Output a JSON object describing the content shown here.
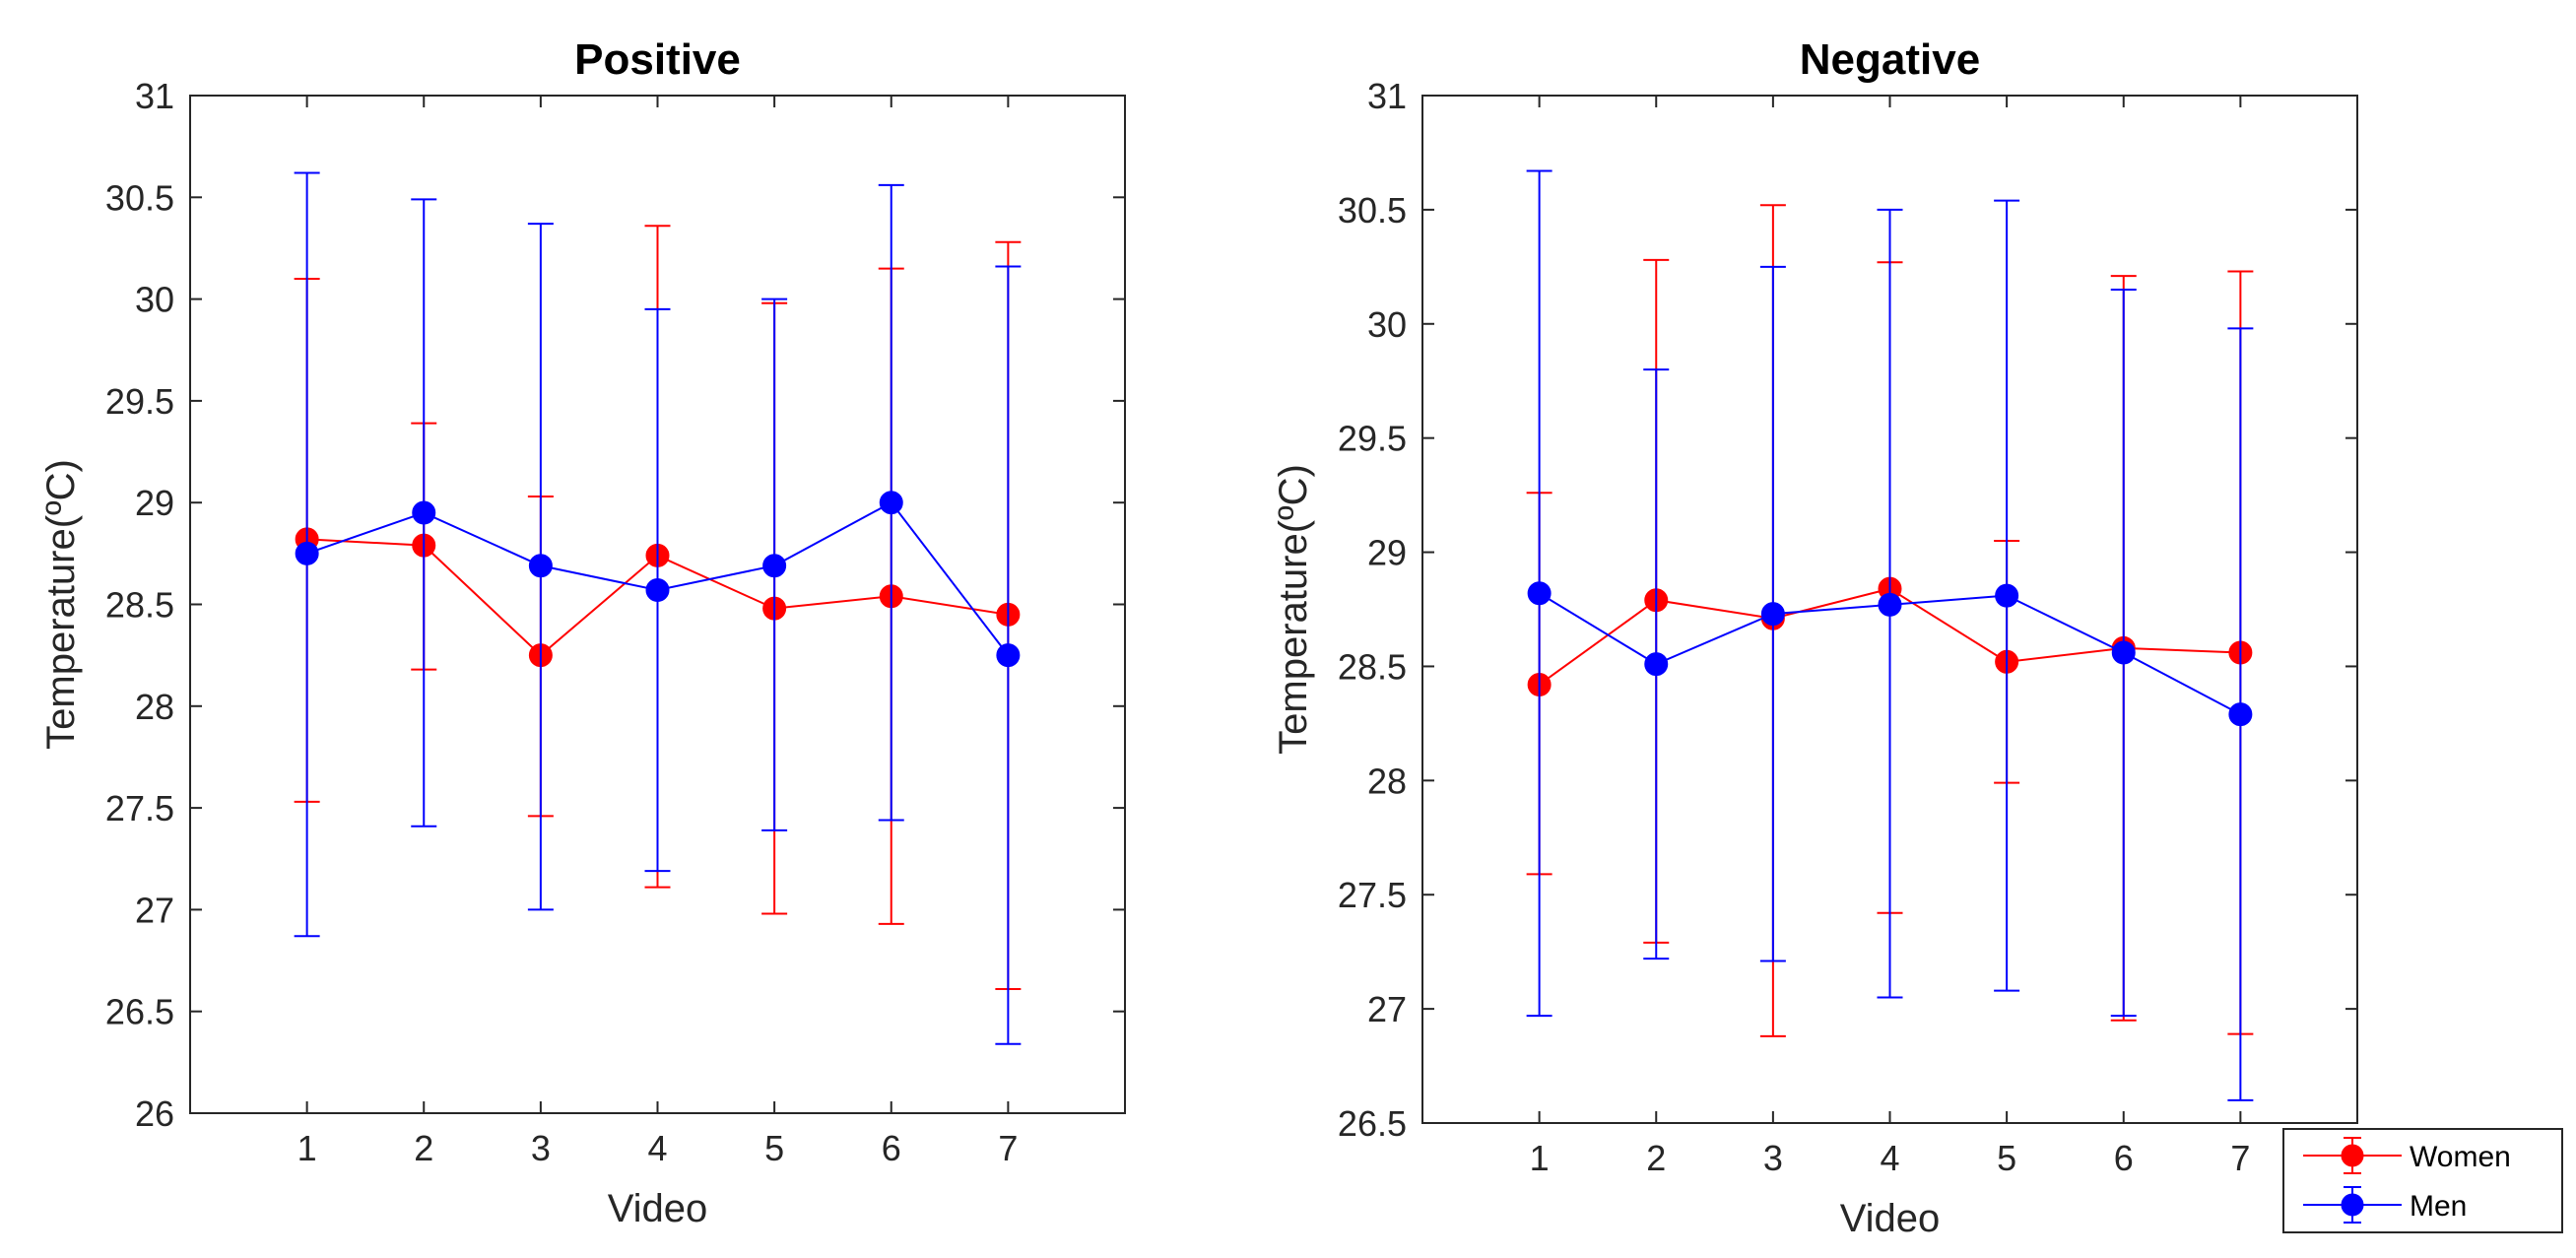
{
  "chart_data": [
    {
      "type": "line",
      "title": "Positive",
      "xlabel": "Video",
      "ylabel": "Temperature(ºC)",
      "xlim": [
        0,
        8
      ],
      "ylim": [
        26,
        31
      ],
      "x": [
        1,
        2,
        3,
        4,
        5,
        6,
        7
      ],
      "xticks": [
        "1",
        "2",
        "3",
        "4",
        "5",
        "6",
        "7"
      ],
      "yticks": [
        "26",
        "26.5",
        "27",
        "27.5",
        "28",
        "28.5",
        "29",
        "29.5",
        "30",
        "30.5",
        "31"
      ],
      "grid": false,
      "series": [
        {
          "name": "Women",
          "color": "#ff0000",
          "values": [
            28.82,
            28.79,
            28.25,
            28.74,
            28.48,
            28.54,
            28.45
          ],
          "upper": [
            30.1,
            29.39,
            29.03,
            30.36,
            29.98,
            30.15,
            30.28
          ],
          "lower": [
            27.53,
            28.18,
            27.46,
            27.11,
            26.98,
            26.93,
            26.61
          ]
        },
        {
          "name": "Men",
          "color": "#0000ff",
          "values": [
            28.75,
            28.95,
            28.69,
            28.57,
            28.69,
            29.0,
            28.25
          ],
          "upper": [
            30.62,
            30.49,
            30.37,
            29.95,
            30.0,
            30.56,
            30.16
          ],
          "lower": [
            26.87,
            27.41,
            27.0,
            27.19,
            27.39,
            27.44,
            26.34
          ]
        }
      ]
    },
    {
      "type": "line",
      "title": "Negative",
      "xlabel": "Video",
      "ylabel": "Temperature(ºC)",
      "xlim": [
        0,
        8
      ],
      "ylim": [
        26.5,
        31
      ],
      "x": [
        1,
        2,
        3,
        4,
        5,
        6,
        7
      ],
      "xticks": [
        "1",
        "2",
        "3",
        "4",
        "5",
        "6",
        "7"
      ],
      "yticks": [
        "26.5",
        "27",
        "27.5",
        "28",
        "28.5",
        "29",
        "29.5",
        "30",
        "30.5",
        "31"
      ],
      "grid": false,
      "legend": {
        "location": "bottom-right-outside",
        "entries": [
          "Women",
          "Men"
        ]
      },
      "series": [
        {
          "name": "Women",
          "color": "#ff0000",
          "values": [
            28.42,
            28.79,
            28.71,
            28.84,
            28.52,
            28.58,
            28.56
          ],
          "upper": [
            29.26,
            30.28,
            30.52,
            30.27,
            29.05,
            30.21,
            30.23
          ],
          "lower": [
            27.59,
            27.29,
            26.88,
            27.42,
            27.99,
            26.95,
            26.89
          ]
        },
        {
          "name": "Men",
          "color": "#0000ff",
          "values": [
            28.82,
            28.51,
            28.73,
            28.77,
            28.81,
            28.56,
            28.29
          ],
          "upper": [
            30.67,
            29.8,
            30.25,
            30.5,
            30.54,
            30.15,
            29.98
          ],
          "lower": [
            26.97,
            27.22,
            27.21,
            27.05,
            27.08,
            26.97,
            26.6
          ]
        }
      ]
    }
  ]
}
